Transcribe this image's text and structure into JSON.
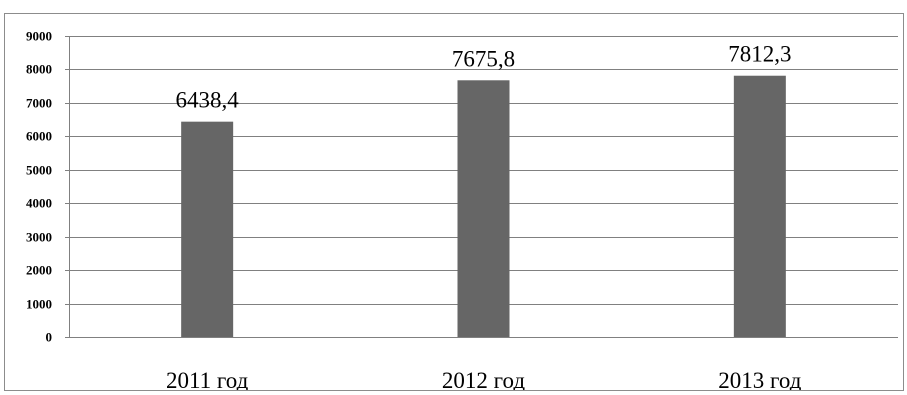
{
  "chart_data": {
    "type": "bar",
    "categories": [
      "2011 год",
      "2012 год",
      "2013 год"
    ],
    "values": [
      6438.4,
      7675.8,
      7812.3
    ],
    "data_labels": [
      "6438,4",
      "7675,8",
      "7812,3"
    ],
    "ylim": [
      0,
      9000
    ],
    "yticks": [
      "0",
      "1000",
      "2000",
      "3000",
      "4000",
      "5000",
      "6000",
      "7000",
      "8000",
      "9000"
    ],
    "grid": true,
    "legend": "none",
    "title": "",
    "xlabel": "",
    "ylabel": "",
    "colors": {
      "bar": "#666666",
      "grid": "#808080",
      "axis": "#808080"
    }
  }
}
